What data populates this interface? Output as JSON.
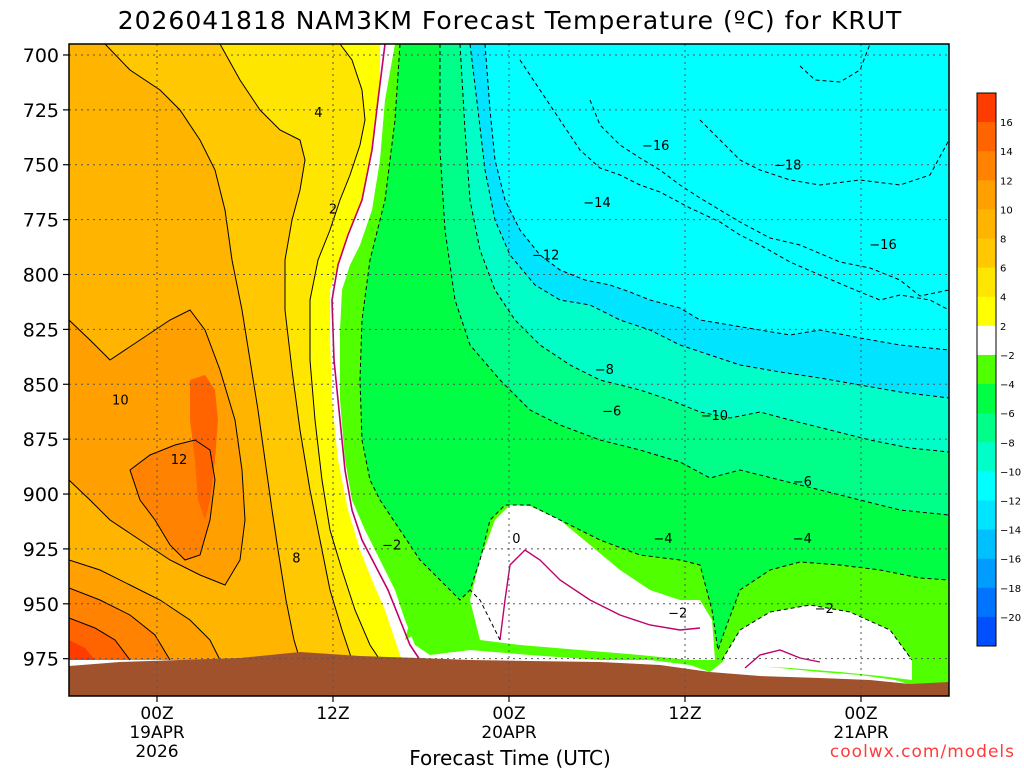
{
  "chart_data": {
    "type": "heatmap",
    "title": "2026041818 NAM3KM Forecast Temperature (ºC) for KRUT",
    "xlabel": "Forecast Time (UTC)",
    "ylabel": "",
    "credit": "coolwx.com/models",
    "y_axis": {
      "unit": "hPa",
      "ticks": [
        "700",
        "725",
        "750",
        "775",
        "800",
        "825",
        "850",
        "875",
        "900",
        "925",
        "950",
        "975"
      ],
      "range": [
        695,
        992
      ],
      "inverted": true
    },
    "x_axis": {
      "range": [
        "2026-04-18T18:00Z",
        "2026-04-21T06:00Z"
      ],
      "ticks": [
        {
          "lines": [
            "00Z",
            "19APR",
            "2026"
          ],
          "time": "2026-04-19T00:00Z"
        },
        {
          "lines": [
            "12Z"
          ],
          "time": "2026-04-19T12:00Z"
        },
        {
          "lines": [
            "00Z",
            "20APR"
          ],
          "time": "2026-04-20T00:00Z"
        },
        {
          "lines": [
            "12Z"
          ],
          "time": "2026-04-20T12:00Z"
        },
        {
          "lines": [
            "00Z",
            "21APR"
          ],
          "time": "2026-04-21T00:00Z"
        }
      ]
    },
    "grid": true,
    "legend": "right",
    "colorbar": {
      "levels": [
        "16",
        "14",
        "12",
        "10",
        "8",
        "6",
        "4",
        "2",
        "−2",
        "−4",
        "−6",
        "−8",
        "−10",
        "−12",
        "−14",
        "−16",
        "−18",
        "−20"
      ],
      "colors": [
        "#ff3c00",
        "#ff6400",
        "#ff8200",
        "#ffa000",
        "#ffb400",
        "#ffc800",
        "#ffe600",
        "#ffff00",
        "#ffffff",
        "#50ff00",
        "#00ff44",
        "#00ff88",
        "#00ffc8",
        "#00ffff",
        "#00e4ff",
        "#00c0ff",
        "#009cff",
        "#0074ff",
        "#0050ff"
      ]
    },
    "contour_labels": [
      {
        "text": "4",
        "time": "2026-04-19T11:00Z",
        "p": 726
      },
      {
        "text": "2",
        "time": "2026-04-19T12:00Z",
        "p": 770
      },
      {
        "text": "10",
        "time": "2026-04-18T21:30Z",
        "p": 857
      },
      {
        "text": "12",
        "time": "2026-04-19T01:30Z",
        "p": 884
      },
      {
        "text": "8",
        "time": "2026-04-19T09:30Z",
        "p": 929
      },
      {
        "text": "−2",
        "time": "2026-04-19T16:00Z",
        "p": 923
      },
      {
        "text": "0",
        "time": "2026-04-20T00:30Z",
        "p": 920
      },
      {
        "text": "−4",
        "time": "2026-04-20T10:30Z",
        "p": 920
      },
      {
        "text": "−2",
        "time": "2026-04-20T11:30Z",
        "p": 954
      },
      {
        "text": "−6",
        "time": "2026-04-20T07:00Z",
        "p": 862
      },
      {
        "text": "−8",
        "time": "2026-04-20T06:30Z",
        "p": 843
      },
      {
        "text": "−10",
        "time": "2026-04-20T14:00Z",
        "p": 864
      },
      {
        "text": "−6",
        "time": "2026-04-20T20:00Z",
        "p": 894
      },
      {
        "text": "−4",
        "time": "2026-04-20T20:00Z",
        "p": 920
      },
      {
        "text": "−2",
        "time": "2026-04-20T21:30Z",
        "p": 952
      },
      {
        "text": "−12",
        "time": "2026-04-20T02:30Z",
        "p": 791
      },
      {
        "text": "−14",
        "time": "2026-04-20T06:00Z",
        "p": 767
      },
      {
        "text": "−16",
        "time": "2026-04-20T10:00Z",
        "p": 741
      },
      {
        "text": "−18",
        "time": "2026-04-20T19:00Z",
        "p": 750
      },
      {
        "text": "−16",
        "time": "2026-04-21T01:30Z",
        "p": 786
      }
    ]
  }
}
